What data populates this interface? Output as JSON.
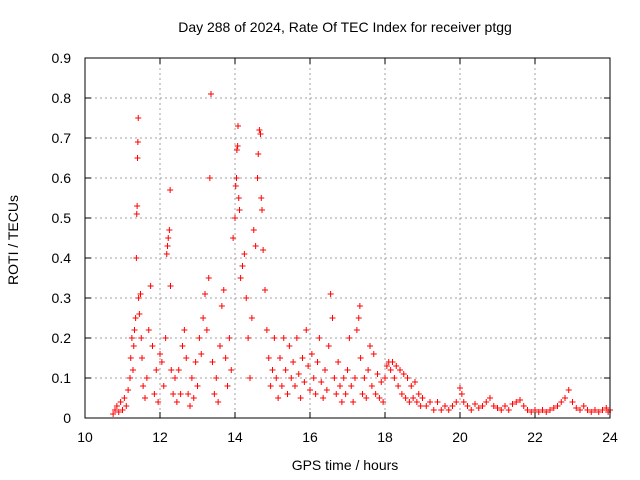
{
  "chart_data": {
    "type": "scatter",
    "title": "Day 288 of 2024, Rate Of TEC Index for receiver ptgg",
    "xlabel": "GPS time / hours",
    "ylabel": "ROTI / TECUs",
    "xlim": [
      10,
      24
    ],
    "ylim": [
      0,
      0.9
    ],
    "x_ticks": [
      10,
      12,
      14,
      16,
      18,
      20,
      22,
      24
    ],
    "x_tick_labels": [
      "10",
      "12",
      "14",
      "16",
      "18",
      "20",
      "22",
      "24"
    ],
    "y_ticks": [
      0,
      0.1,
      0.2,
      0.3,
      0.4,
      0.5,
      0.6,
      0.7,
      0.8,
      0.9
    ],
    "y_tick_labels": [
      "0",
      "0.1",
      "0.2",
      "0.3",
      "0.4",
      "0.5",
      "0.6",
      "0.7",
      "0.8",
      "0.9"
    ],
    "grid": true,
    "marker": "+",
    "marker_color": "#ff0000",
    "series": [
      {
        "name": "ROTI",
        "points": [
          [
            10.75,
            0.01
          ],
          [
            10.8,
            0.02
          ],
          [
            10.85,
            0.03
          ],
          [
            10.9,
            0.015
          ],
          [
            10.95,
            0.04
          ],
          [
            11.0,
            0.02
          ],
          [
            11.05,
            0.05
          ],
          [
            11.1,
            0.03
          ],
          [
            11.15,
            0.07
          ],
          [
            11.2,
            0.1
          ],
          [
            11.22,
            0.15
          ],
          [
            11.25,
            0.2
          ],
          [
            11.28,
            0.12
          ],
          [
            11.3,
            0.18
          ],
          [
            11.32,
            0.22
          ],
          [
            11.35,
            0.25
          ],
          [
            11.37,
            0.4
          ],
          [
            11.38,
            0.51
          ],
          [
            11.39,
            0.53
          ],
          [
            11.4,
            0.65
          ],
          [
            11.41,
            0.69
          ],
          [
            11.42,
            0.75
          ],
          [
            11.43,
            0.3
          ],
          [
            11.45,
            0.26
          ],
          [
            11.48,
            0.31
          ],
          [
            11.5,
            0.2
          ],
          [
            11.52,
            0.15
          ],
          [
            11.55,
            0.08
          ],
          [
            11.6,
            0.05
          ],
          [
            11.65,
            0.1
          ],
          [
            11.7,
            0.22
          ],
          [
            11.75,
            0.33
          ],
          [
            11.8,
            0.18
          ],
          [
            11.85,
            0.06
          ],
          [
            11.9,
            0.12
          ],
          [
            11.95,
            0.04
          ],
          [
            12.0,
            0.16
          ],
          [
            12.05,
            0.14
          ],
          [
            12.1,
            0.08
          ],
          [
            12.15,
            0.2
          ],
          [
            12.18,
            0.41
          ],
          [
            12.2,
            0.43
          ],
          [
            12.22,
            0.45
          ],
          [
            12.25,
            0.47
          ],
          [
            12.27,
            0.57
          ],
          [
            12.28,
            0.33
          ],
          [
            12.3,
            0.12
          ],
          [
            12.35,
            0.06
          ],
          [
            12.4,
            0.1
          ],
          [
            12.45,
            0.04
          ],
          [
            12.5,
            0.12
          ],
          [
            12.55,
            0.06
          ],
          [
            12.6,
            0.18
          ],
          [
            12.65,
            0.22
          ],
          [
            12.7,
            0.15
          ],
          [
            12.75,
            0.06
          ],
          [
            12.8,
            0.03
          ],
          [
            12.85,
            0.1
          ],
          [
            12.9,
            0.05
          ],
          [
            12.95,
            0.14
          ],
          [
            13.0,
            0.08
          ],
          [
            13.05,
            0.2
          ],
          [
            13.1,
            0.16
          ],
          [
            13.15,
            0.25
          ],
          [
            13.2,
            0.31
          ],
          [
            13.25,
            0.22
          ],
          [
            13.3,
            0.35
          ],
          [
            13.33,
            0.6
          ],
          [
            13.36,
            0.81
          ],
          [
            13.4,
            0.14
          ],
          [
            13.45,
            0.06
          ],
          [
            13.5,
            0.1
          ],
          [
            13.55,
            0.04
          ],
          [
            13.6,
            0.18
          ],
          [
            13.65,
            0.28
          ],
          [
            13.7,
            0.32
          ],
          [
            13.75,
            0.15
          ],
          [
            13.8,
            0.08
          ],
          [
            13.85,
            0.2
          ],
          [
            13.9,
            0.12
          ],
          [
            13.95,
            0.45
          ],
          [
            14.0,
            0.5
          ],
          [
            14.02,
            0.58
          ],
          [
            14.04,
            0.6
          ],
          [
            14.05,
            0.67
          ],
          [
            14.07,
            0.68
          ],
          [
            14.08,
            0.73
          ],
          [
            14.1,
            0.55
          ],
          [
            14.12,
            0.52
          ],
          [
            14.15,
            0.35
          ],
          [
            14.2,
            0.38
          ],
          [
            14.25,
            0.41
          ],
          [
            14.3,
            0.3
          ],
          [
            14.35,
            0.2
          ],
          [
            14.4,
            0.1
          ],
          [
            14.45,
            0.25
          ],
          [
            14.5,
            0.47
          ],
          [
            14.55,
            0.43
          ],
          [
            14.6,
            0.6
          ],
          [
            14.62,
            0.66
          ],
          [
            14.65,
            0.72
          ],
          [
            14.68,
            0.71
          ],
          [
            14.7,
            0.55
          ],
          [
            14.72,
            0.52
          ],
          [
            14.75,
            0.42
          ],
          [
            14.8,
            0.32
          ],
          [
            14.85,
            0.22
          ],
          [
            14.9,
            0.15
          ],
          [
            14.95,
            0.08
          ],
          [
            15.0,
            0.12
          ],
          [
            15.05,
            0.2
          ],
          [
            15.1,
            0.1
          ],
          [
            15.15,
            0.05
          ],
          [
            15.2,
            0.15
          ],
          [
            15.25,
            0.08
          ],
          [
            15.3,
            0.2
          ],
          [
            15.35,
            0.12
          ],
          [
            15.4,
            0.06
          ],
          [
            15.45,
            0.18
          ],
          [
            15.5,
            0.1
          ],
          [
            15.55,
            0.14
          ],
          [
            15.6,
            0.08
          ],
          [
            15.65,
            0.2
          ],
          [
            15.7,
            0.11
          ],
          [
            15.75,
            0.05
          ],
          [
            15.8,
            0.15
          ],
          [
            15.85,
            0.09
          ],
          [
            15.9,
            0.22
          ],
          [
            15.95,
            0.13
          ],
          [
            16.0,
            0.07
          ],
          [
            16.05,
            0.16
          ],
          [
            16.1,
            0.1
          ],
          [
            16.15,
            0.06
          ],
          [
            16.2,
            0.14
          ],
          [
            16.25,
            0.2
          ],
          [
            16.3,
            0.09
          ],
          [
            16.35,
            0.05
          ],
          [
            16.4,
            0.12
          ],
          [
            16.45,
            0.07
          ],
          [
            16.5,
            0.18
          ],
          [
            16.55,
            0.31
          ],
          [
            16.6,
            0.25
          ],
          [
            16.65,
            0.1
          ],
          [
            16.7,
            0.06
          ],
          [
            16.75,
            0.14
          ],
          [
            16.8,
            0.08
          ],
          [
            16.85,
            0.04
          ],
          [
            16.9,
            0.1
          ],
          [
            16.95,
            0.06
          ],
          [
            17.0,
            0.12
          ],
          [
            17.05,
            0.2
          ],
          [
            17.1,
            0.08
          ],
          [
            17.15,
            0.04
          ],
          [
            17.2,
            0.1
          ],
          [
            17.25,
            0.22
          ],
          [
            17.3,
            0.25
          ],
          [
            17.33,
            0.28
          ],
          [
            17.35,
            0.15
          ],
          [
            17.4,
            0.06
          ],
          [
            17.45,
            0.1
          ],
          [
            17.5,
            0.05
          ],
          [
            17.55,
            0.12
          ],
          [
            17.6,
            0.18
          ],
          [
            17.65,
            0.08
          ],
          [
            17.7,
            0.16
          ],
          [
            17.75,
            0.06
          ],
          [
            17.8,
            0.11
          ],
          [
            17.85,
            0.05
          ],
          [
            17.9,
            0.09
          ],
          [
            17.95,
            0.04
          ],
          [
            18.0,
            0.1
          ],
          [
            18.05,
            0.13
          ],
          [
            18.1,
            0.14
          ],
          [
            18.15,
            0.12
          ],
          [
            18.2,
            0.14
          ],
          [
            18.25,
            0.1
          ],
          [
            18.3,
            0.13
          ],
          [
            18.35,
            0.08
          ],
          [
            18.4,
            0.12
          ],
          [
            18.45,
            0.06
          ],
          [
            18.5,
            0.11
          ],
          [
            18.55,
            0.05
          ],
          [
            18.6,
            0.1
          ],
          [
            18.65,
            0.04
          ],
          [
            18.7,
            0.08
          ],
          [
            18.75,
            0.05
          ],
          [
            18.8,
            0.09
          ],
          [
            18.85,
            0.04
          ],
          [
            18.9,
            0.06
          ],
          [
            18.95,
            0.03
          ],
          [
            19.0,
            0.05
          ],
          [
            19.1,
            0.03
          ],
          [
            19.2,
            0.04
          ],
          [
            19.3,
            0.02
          ],
          [
            19.4,
            0.04
          ],
          [
            19.5,
            0.02
          ],
          [
            19.6,
            0.03
          ],
          [
            19.7,
            0.02
          ],
          [
            19.8,
            0.03
          ],
          [
            19.9,
            0.04
          ],
          [
            20.0,
            0.075
          ],
          [
            20.05,
            0.06
          ],
          [
            20.1,
            0.04
          ],
          [
            20.2,
            0.03
          ],
          [
            20.3,
            0.02
          ],
          [
            20.4,
            0.035
          ],
          [
            20.5,
            0.025
          ],
          [
            20.6,
            0.03
          ],
          [
            20.7,
            0.04
          ],
          [
            20.8,
            0.05
          ],
          [
            20.9,
            0.03
          ],
          [
            21.0,
            0.025
          ],
          [
            21.1,
            0.02
          ],
          [
            21.2,
            0.03
          ],
          [
            21.3,
            0.02
          ],
          [
            21.4,
            0.035
          ],
          [
            21.5,
            0.04
          ],
          [
            21.6,
            0.045
          ],
          [
            21.7,
            0.03
          ],
          [
            21.8,
            0.02
          ],
          [
            21.9,
            0.015
          ],
          [
            22.0,
            0.02
          ],
          [
            22.1,
            0.015
          ],
          [
            22.2,
            0.02
          ],
          [
            22.3,
            0.015
          ],
          [
            22.4,
            0.02
          ],
          [
            22.5,
            0.025
          ],
          [
            22.6,
            0.03
          ],
          [
            22.7,
            0.04
          ],
          [
            22.8,
            0.05
          ],
          [
            22.9,
            0.07
          ],
          [
            23.0,
            0.04
          ],
          [
            23.1,
            0.025
          ],
          [
            23.2,
            0.02
          ],
          [
            23.3,
            0.03
          ],
          [
            23.4,
            0.02
          ],
          [
            23.5,
            0.015
          ],
          [
            23.6,
            0.02
          ],
          [
            23.7,
            0.015
          ],
          [
            23.8,
            0.02
          ],
          [
            23.9,
            0.025
          ],
          [
            23.95,
            0.015
          ],
          [
            24.0,
            0.02
          ]
        ]
      }
    ]
  }
}
